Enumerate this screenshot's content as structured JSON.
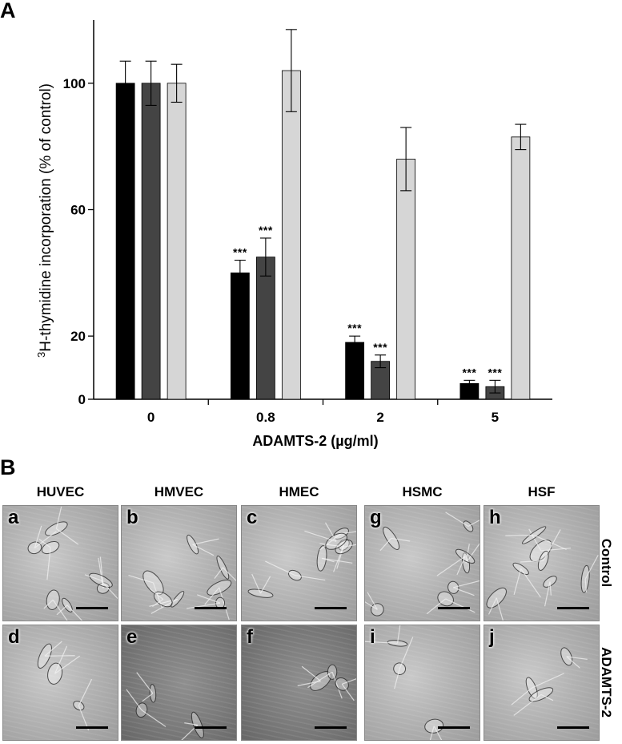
{
  "panel_a_label": "A",
  "panel_b_label": "B",
  "chart_data": {
    "type": "bar",
    "title": "",
    "xlabel": "ADAMTS-2 (µg/ml)",
    "ylabel_sup": "3",
    "ylabel": "H-thymidine incorporation (% of control)",
    "categories": [
      "0",
      "0.8",
      "2",
      "5"
    ],
    "ylim": [
      0,
      120
    ],
    "yticks": [
      0,
      20,
      60,
      100
    ],
    "grid": false,
    "series": [
      {
        "color": "#000000",
        "values": [
          100,
          40,
          18,
          5
        ],
        "errors": [
          7,
          4,
          2,
          1
        ],
        "significance": [
          "",
          "***",
          "***",
          "***"
        ]
      },
      {
        "color": "#444444",
        "values": [
          100,
          45,
          12,
          4
        ],
        "errors": [
          7,
          6,
          2,
          2
        ],
        "significance": [
          "",
          "***",
          "***",
          "***"
        ]
      },
      {
        "color": "#d6d6d6",
        "values": [
          100,
          104,
          76,
          83
        ],
        "errors": [
          6,
          13,
          10,
          4
        ],
        "significance": [
          "",
          "",
          "",
          ""
        ]
      }
    ]
  },
  "panel_b": {
    "columns": [
      "HUVEC",
      "HMVEC",
      "HMEC",
      "HSMC",
      "HSF"
    ],
    "row_labels": [
      "Control",
      "ADAMTS-2"
    ],
    "top_letters": [
      "a",
      "b",
      "c",
      "g",
      "h"
    ],
    "bottom_letters": [
      "d",
      "e",
      "f",
      "i",
      "j"
    ]
  }
}
